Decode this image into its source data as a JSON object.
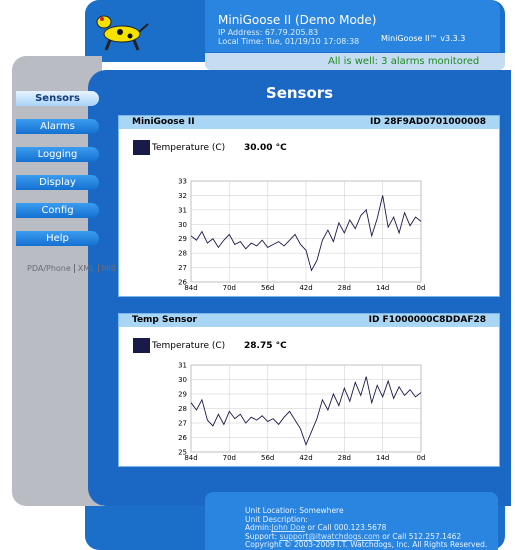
{
  "header": {
    "title": "MiniGoose II (Demo Mode)",
    "ip": "IP Address: 67.79.205.83",
    "time": "Local Time: Tue, 01/19/10 17:08:38",
    "version": "MiniGoose II™ v3.3.3"
  },
  "status": "All is well: 3 alarms monitored",
  "page_title": "Sensors",
  "nav": [
    "Sensors",
    "Alarms",
    "Logging",
    "Display",
    "Config",
    "Help"
  ],
  "links": [
    "PDA/Phone",
    "XML",
    "MIB"
  ],
  "sensors": [
    {
      "name": "MiniGoose II",
      "id": "ID 28F9AD0701000008",
      "reading_label": "Temperature (C)",
      "reading": "30.00 °C",
      "chart": {
        "type": "line",
        "color": "#1a1a4a",
        "x": [
          84,
          82,
          80,
          78,
          76,
          74,
          72,
          70,
          68,
          66,
          64,
          62,
          60,
          58,
          56,
          54,
          52,
          50,
          48,
          46,
          44,
          42,
          40,
          38,
          36,
          34,
          32,
          30,
          28,
          26,
          24,
          22,
          20,
          18,
          16,
          14,
          12,
          10,
          8,
          6,
          4,
          2,
          0
        ],
        "values": [
          29.2,
          28.9,
          29.5,
          28.7,
          29.0,
          28.4,
          28.9,
          29.3,
          28.6,
          28.8,
          28.3,
          28.7,
          28.5,
          28.9,
          28.4,
          28.6,
          28.8,
          28.5,
          28.9,
          29.3,
          28.6,
          28.2,
          26.8,
          27.5,
          28.9,
          29.6,
          28.8,
          30.1,
          29.4,
          30.3,
          29.7,
          30.6,
          31.0,
          29.2,
          30.4,
          32.0,
          29.8,
          30.5,
          29.4,
          30.8,
          29.9,
          30.5,
          30.2
        ],
        "xlim": [
          84,
          0
        ],
        "xticks": [
          {
            "value": 84,
            "label": "84d"
          },
          {
            "value": 70,
            "label": "70d"
          },
          {
            "value": 56,
            "label": "56d"
          },
          {
            "value": 42,
            "label": "42d"
          },
          {
            "value": 28,
            "label": "28d"
          },
          {
            "value": 14,
            "label": "14d"
          },
          {
            "value": 0,
            "label": "0d"
          }
        ],
        "ylim": [
          26,
          33
        ],
        "yticks": [
          26,
          27,
          28,
          29,
          30,
          31,
          32,
          33
        ],
        "grid": true
      }
    },
    {
      "name": "Temp Sensor",
      "id": "ID F1000000C8DDAF28",
      "reading_label": "Temperature (C)",
      "reading": "28.75 °C",
      "chart": {
        "type": "line",
        "color": "#1a1a4a",
        "x": [
          84,
          82,
          80,
          78,
          76,
          74,
          72,
          70,
          68,
          66,
          64,
          62,
          60,
          58,
          56,
          54,
          52,
          50,
          48,
          46,
          44,
          42,
          40,
          38,
          36,
          34,
          32,
          30,
          28,
          26,
          24,
          22,
          20,
          18,
          16,
          14,
          12,
          10,
          8,
          6,
          4,
          2,
          0
        ],
        "values": [
          28.4,
          27.9,
          28.6,
          27.2,
          26.8,
          27.6,
          26.9,
          27.8,
          27.3,
          27.6,
          27.0,
          27.4,
          27.2,
          27.5,
          27.1,
          27.3,
          26.9,
          27.4,
          27.8,
          27.2,
          26.6,
          25.5,
          26.4,
          27.3,
          28.6,
          27.9,
          29.0,
          28.2,
          29.4,
          28.5,
          29.8,
          28.9,
          30.2,
          28.4,
          29.6,
          28.8,
          29.9,
          28.7,
          29.5,
          28.9,
          29.3,
          28.8,
          29.1
        ],
        "xlim": [
          84,
          0
        ],
        "xticks": [
          {
            "value": 84,
            "label": "84d"
          },
          {
            "value": 70,
            "label": "70d"
          },
          {
            "value": 56,
            "label": "56d"
          },
          {
            "value": 42,
            "label": "42d"
          },
          {
            "value": 28,
            "label": "28d"
          },
          {
            "value": 14,
            "label": "14d"
          },
          {
            "value": 0,
            "label": "0d"
          }
        ],
        "ylim": [
          25,
          31
        ],
        "yticks": [
          25,
          26,
          27,
          28,
          29,
          30,
          31
        ],
        "grid": true
      }
    }
  ],
  "footer": {
    "location": "Unit Location: Somewhere",
    "description": "Unit Description:",
    "admin_label": "Admin:",
    "admin_name": "John Doe",
    "admin_phone": "or Call 000.123.5678",
    "support_label": "Support:",
    "support_email": "support@itwatchdogs.com",
    "support_phone": "or Call 512.257.1462",
    "copyright": "Copyright © 2003-2009 I.T. Watchdogs, Inc.  All Rights Reserved."
  }
}
